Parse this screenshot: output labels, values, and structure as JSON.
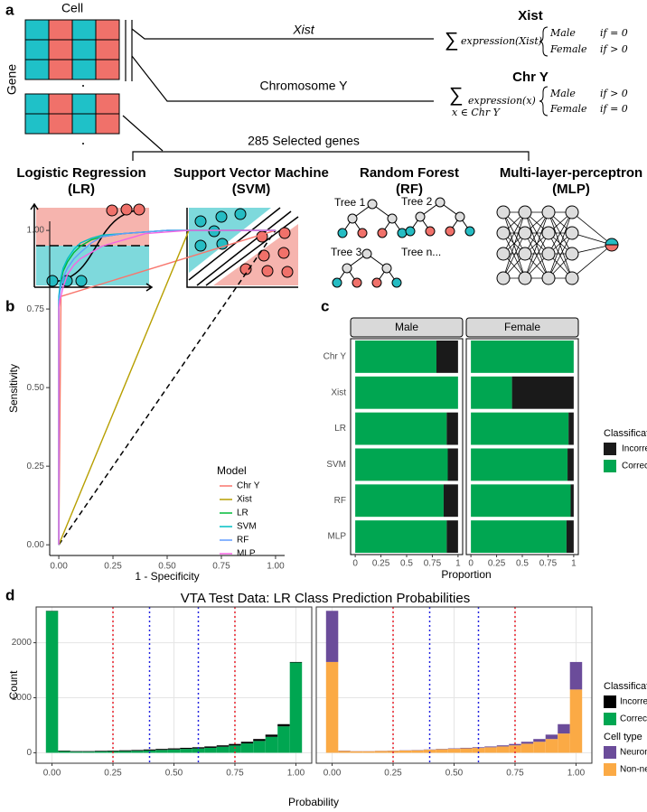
{
  "panels": [
    "a",
    "b",
    "c",
    "d"
  ],
  "diagram": {
    "cell_label": "Cell",
    "gene_label": "Gene",
    "xist_path": "Xist",
    "chry_path": "Chromosome Y",
    "genes_path": "285 Selected genes",
    "xist_title": "Xist",
    "xist_formula": {
      "sum": "∑",
      "expr": "expression(Xist)",
      "male": "Male",
      "male_cond": "if = 0",
      "female": "Female",
      "female_cond": "if > 0"
    },
    "chry_title": "Chr Y",
    "chry_formula": {
      "sum": "∑",
      "sub": "x ∈ Chr Y",
      "expr": "expression(x)",
      "male": "Male",
      "male_cond": "if > 0",
      "female": "Female",
      "female_cond": "if = 0"
    },
    "models": [
      {
        "name": "Logistic Regression",
        "abbr": "(LR)"
      },
      {
        "name": "Support Vector Machine",
        "abbr": "(SVM)"
      },
      {
        "name": "Random Forest",
        "abbr": "(RF)"
      },
      {
        "name": "Multi-layer-perceptron",
        "abbr": "(MLP)"
      }
    ],
    "trees": [
      "Tree 1",
      "Tree 2",
      "Tree 3",
      "Tree n..."
    ]
  },
  "chart_data": [
    {
      "type": "line",
      "xlabel": "1 - Specificity",
      "ylabel": "Sensitivity",
      "legend_title": "Model",
      "xlim": [
        -0.042,
        1.042
      ],
      "ylim": [
        -0.034,
        1.029
      ],
      "xticks": [
        {
          "value": 0,
          "label": "0.00"
        },
        {
          "value": 0.25,
          "label": "0.25"
        },
        {
          "value": 0.5,
          "label": "0.50"
        },
        {
          "value": 0.75,
          "label": "0.75"
        },
        {
          "value": 1,
          "label": "1.00"
        }
      ],
      "yticks": [
        {
          "value": 0,
          "label": "0.00"
        },
        {
          "value": 0.25,
          "label": "0.25"
        },
        {
          "value": 0.5,
          "label": "0.50"
        },
        {
          "value": 0.75,
          "label": "0.75"
        },
        {
          "value": 1,
          "label": "1.00"
        }
      ],
      "series": [
        {
          "name": "Chr Y",
          "color": "#F8766D",
          "x": [
            0,
            0.01,
            1
          ],
          "values": [
            0,
            0.79,
            1
          ]
        },
        {
          "name": "Xist",
          "color": "#B79F00",
          "x": [
            0,
            0.6,
            1
          ],
          "values": [
            0,
            1,
            1
          ]
        },
        {
          "name": "LR",
          "color": "#00BA38",
          "x": [
            0,
            0,
            0.005,
            0.01,
            0.02,
            0.04,
            0.07,
            0.1,
            0.15,
            0.2,
            0.3,
            0.4,
            0.5,
            0.6,
            1
          ],
          "values": [
            0,
            0.78,
            0.81,
            0.84,
            0.87,
            0.9,
            0.93,
            0.95,
            0.97,
            0.98,
            0.99,
            0.995,
            1,
            1,
            1
          ]
        },
        {
          "name": "SVM",
          "color": "#00BFC4",
          "x": [
            0,
            0,
            0.005,
            0.01,
            0.02,
            0.04,
            0.07,
            0.1,
            0.15,
            0.2,
            0.3,
            0.4,
            0.5,
            0.6,
            1
          ],
          "values": [
            0,
            0.79,
            0.82,
            0.85,
            0.88,
            0.91,
            0.94,
            0.96,
            0.975,
            0.985,
            0.99,
            0.995,
            1,
            1,
            1
          ]
        },
        {
          "name": "RF",
          "color": "#619CFF",
          "x": [
            0,
            0,
            0.005,
            0.01,
            0.02,
            0.04,
            0.07,
            0.1,
            0.15,
            0.2,
            0.3,
            0.4,
            0.5,
            0.6,
            1
          ],
          "values": [
            0,
            0.77,
            0.8,
            0.82,
            0.85,
            0.88,
            0.91,
            0.93,
            0.96,
            0.98,
            0.99,
            0.995,
            1,
            1,
            1
          ]
        },
        {
          "name": "MLP",
          "color": "#F564E3",
          "x": [
            0,
            0,
            0.005,
            0.01,
            0.02,
            0.04,
            0.07,
            0.1,
            0.15,
            0.2,
            0.3,
            0.4,
            0.5,
            0.6,
            1
          ],
          "values": [
            0,
            0.75,
            0.78,
            0.79,
            0.82,
            0.86,
            0.89,
            0.91,
            0.93,
            0.95,
            0.97,
            0.99,
            0.995,
            1,
            1
          ]
        }
      ]
    },
    {
      "type": "bar",
      "orientation": "horizontal",
      "xlabel": "Proportion",
      "legend_title": "Classification",
      "facets": [
        "Male",
        "Female"
      ],
      "categories": [
        "Chr Y",
        "Xist",
        "LR",
        "SVM",
        "RF",
        "MLP"
      ],
      "xlim": [
        -0.045,
        1.045
      ],
      "xticks": [
        0,
        0.25,
        0.5,
        0.75,
        1
      ],
      "series": [
        {
          "name": "Incorrect",
          "color": "#1a1a1a",
          "values": [
            [
              0.21,
              0,
              0.11,
              0.1,
              0.14,
              0.11
            ],
            [
              0,
              0.6,
              0.05,
              0.06,
              0.03,
              0.07
            ]
          ]
        },
        {
          "name": "Correct",
          "color": "#00a651",
          "values": [
            [
              0.79,
              1,
              0.89,
              0.9,
              0.86,
              0.89
            ],
            [
              1,
              0.4,
              0.95,
              0.94,
              0.97,
              0.93
            ]
          ]
        }
      ]
    },
    {
      "type": "histogram",
      "title": "VTA Test  Data: LR Class Prediction Probabilities",
      "xlabel": "Probability",
      "ylabel": "Count",
      "bins": [
        -0.025,
        0.025,
        0.075,
        0.125,
        0.175,
        0.225,
        0.275,
        0.325,
        0.375,
        0.425,
        0.475,
        0.525,
        0.575,
        0.625,
        0.675,
        0.725,
        0.775,
        0.825,
        0.875,
        0.925,
        0.975,
        1.025
      ],
      "xlim": [
        -0.065,
        1.065
      ],
      "ylim": [
        -190,
        2650
      ],
      "xticks": [
        {
          "value": 0,
          "label": "0.00"
        },
        {
          "value": 0.25,
          "label": "0.25"
        },
        {
          "value": 0.5,
          "label": "0.50"
        },
        {
          "value": 0.75,
          "label": "0.75"
        },
        {
          "value": 1,
          "label": "1.00"
        }
      ],
      "yticks": [
        0,
        1000,
        2000
      ],
      "grid": true,
      "vlines": [
        {
          "x": 0.25,
          "color": "#e8202a"
        },
        {
          "x": 0.4,
          "color": "#2424e0"
        },
        {
          "x": 0.6,
          "color": "#2424e0"
        },
        {
          "x": 0.75,
          "color": "#e8202a"
        }
      ],
      "facets": [
        {
          "legend_title": "Classification",
          "series": [
            {
              "name": "Incorrect",
              "color": "#000000",
              "values": [
                5,
                10,
                10,
                10,
                12,
                12,
                15,
                15,
                18,
                18,
                20,
                20,
                22,
                25,
                25,
                28,
                30,
                35,
                40,
                40,
                10
              ]
            },
            {
              "name": "Correct",
              "color": "#00a651",
              "values": [
                2575,
                30,
                20,
                20,
                23,
                28,
                30,
                35,
                42,
                52,
                60,
                70,
                78,
                90,
                110,
                132,
                170,
                215,
                290,
                480,
                1640
              ]
            }
          ]
        },
        {
          "legend_title": "Cell type",
          "series": [
            {
              "name": "Neuronal",
              "color": "#6b4c9a",
              "values": [
                930,
                5,
                3,
                3,
                3,
                4,
                4,
                5,
                5,
                6,
                8,
                10,
                12,
                15,
                20,
                25,
                35,
                50,
                80,
                170,
                500
              ]
            },
            {
              "name": "Non-neuronal",
              "color": "#fbaa45",
              "values": [
                1650,
                35,
                27,
                27,
                32,
                36,
                41,
                45,
                55,
                64,
                72,
                80,
                88,
                100,
                115,
                135,
                165,
                200,
                250,
                350,
                1150
              ]
            }
          ]
        }
      ]
    }
  ]
}
